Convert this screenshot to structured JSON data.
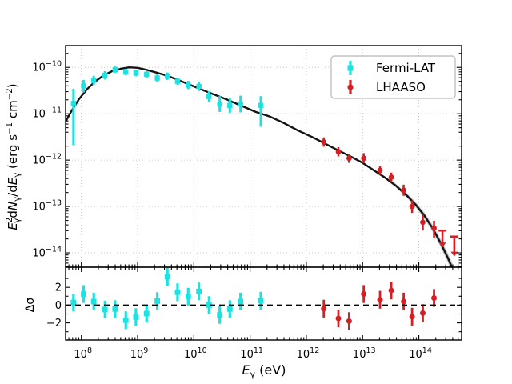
{
  "labels": {
    "residual_ylabel": "Δσ",
    "xlabel_parts": [
      {
        "t": "E",
        "i": 1
      },
      {
        "t": "γ",
        "v": -1
      },
      {
        "t": " (eV)"
      }
    ],
    "ylabel_parts": [
      {
        "t": "E",
        "i": 1
      },
      {
        "t": "2",
        "v": 1
      },
      {
        "t": "γ",
        "v": -1,
        "dx": -7
      },
      {
        "t": "d"
      },
      {
        "t": "N",
        "i": 1
      },
      {
        "t": "γ",
        "v": -1
      },
      {
        "t": "/d"
      },
      {
        "t": "E",
        "i": 1
      },
      {
        "t": "γ",
        "v": -1
      },
      {
        "t": " (erg s"
      },
      {
        "t": "−1",
        "v": 1
      },
      {
        "t": " cm"
      },
      {
        "t": "−2",
        "v": 1
      },
      {
        "t": ")"
      }
    ]
  },
  "chart_data": {
    "type": "scatter",
    "description": "Gamma-ray spectral energy distribution with best-fit model (top panel) and fit residuals in sigma (bottom panel)",
    "legend": {
      "position": "upper right",
      "entries": [
        {
          "label": "Fermi-LAT",
          "color": "#1de2e2",
          "marker": "square"
        },
        {
          "label": "LHAASO",
          "color": "#d42024",
          "marker": "circle"
        }
      ]
    },
    "colors": {
      "fermi": "#1de2e2",
      "lhaaso": "#d42024",
      "model_curve": "#141414",
      "model_band": "#9a9a9a",
      "grid": "#c8c8c8",
      "spine": "#000000",
      "zero_line": "#000000",
      "background": "#ffffff"
    },
    "axes": {
      "x": {
        "scale": "log",
        "lim_log10": [
          7.72,
          14.76
        ],
        "major_exponents": [
          8,
          9,
          10,
          11,
          12,
          13,
          14
        ],
        "grid": true
      },
      "y_main": {
        "scale": "log",
        "lim_log10": [
          -14.31,
          -9.53
        ],
        "major_exponents": [
          -10,
          -11,
          -12,
          -13,
          -14
        ],
        "grid": true
      },
      "y_residual": {
        "scale": "linear",
        "lim_sigma": [
          -3.93,
          4.27
        ],
        "major_ticks": [
          2,
          0,
          -2
        ],
        "minor_ticks": [
          3,
          1,
          -1,
          -3
        ],
        "zero_dashed_line": true,
        "grid": false
      }
    },
    "series": [
      {
        "name": "Fermi-LAT",
        "marker": "square",
        "log10_E_eV": [
          7.86,
          8.04,
          8.22,
          8.42,
          8.6,
          8.79,
          8.97,
          9.16,
          9.35,
          9.53,
          9.71,
          9.9,
          10.09,
          10.27,
          10.46,
          10.64,
          10.83,
          11.19
        ],
        "log10_flux": [
          -10.78,
          -10.4,
          -10.28,
          -10.17,
          -10.05,
          -10.1,
          -10.12,
          -10.15,
          -10.23,
          -10.19,
          -10.3,
          -10.38,
          -10.41,
          -10.63,
          -10.79,
          -10.82,
          -10.79,
          -10.82
        ],
        "err_up_dex": [
          0.32,
          0.13,
          0.1,
          0.09,
          0.07,
          0.07,
          0.07,
          0.07,
          0.08,
          0.08,
          0.08,
          0.09,
          0.1,
          0.12,
          0.17,
          0.16,
          0.18,
          0.2
        ],
        "err_down_dex": [
          0.9,
          0.14,
          0.1,
          0.09,
          0.07,
          0.07,
          0.07,
          0.07,
          0.08,
          0.08,
          0.08,
          0.09,
          0.1,
          0.12,
          0.17,
          0.16,
          0.18,
          0.46
        ],
        "residual_sigma": [
          0.3,
          1.25,
          0.4,
          -0.5,
          -0.45,
          -1.7,
          -1.35,
          -0.95,
          0.45,
          3.2,
          1.45,
          0.95,
          1.55,
          0.0,
          -1.1,
          -0.45,
          0.4,
          0.5
        ],
        "residual_sigma_err": 1.0
      },
      {
        "name": "LHAASO",
        "marker": "circle",
        "log10_E_eV": [
          12.31,
          12.57,
          12.76,
          13.02,
          13.31,
          13.51,
          13.73,
          13.88,
          14.07,
          14.27
        ],
        "log10_flux": [
          -11.61,
          -11.82,
          -11.96,
          -11.96,
          -12.22,
          -12.37,
          -12.65,
          -13.0,
          -13.34,
          -13.47
        ],
        "err_up_dex": [
          0.1,
          0.1,
          0.1,
          0.11,
          0.1,
          0.1,
          0.12,
          0.13,
          0.16,
          0.16
        ],
        "err_down_dex": [
          0.1,
          0.1,
          0.1,
          0.11,
          0.1,
          0.1,
          0.12,
          0.14,
          0.18,
          0.22
        ],
        "residual_sigma": [
          -0.4,
          -1.5,
          -1.8,
          1.25,
          0.6,
          1.65,
          0.4,
          -1.3,
          -0.9,
          0.8
        ],
        "residual_sigma_err": 1.0
      }
    ],
    "upper_limits": {
      "series": "LHAASO",
      "points": [
        {
          "log10_E_eV": 14.42,
          "log10_flux": -13.52,
          "arrow_tip_log10_flux": -13.88
        },
        {
          "log10_E_eV": 14.63,
          "log10_flux": -13.65,
          "arrow_tip_log10_flux": -14.08
        }
      ]
    },
    "model_curve": {
      "log10_E_eV": [
        7.72,
        7.82,
        7.95,
        8.1,
        8.25,
        8.4,
        8.55,
        8.7,
        8.85,
        9.0,
        9.15,
        9.3,
        9.5,
        9.7,
        9.9,
        10.1,
        10.35,
        10.6,
        10.85,
        11.1,
        11.35,
        11.6,
        11.85,
        12.1,
        12.31,
        12.55,
        12.8,
        13.0,
        13.2,
        13.4,
        13.6,
        13.8,
        13.95,
        14.1,
        14.25,
        14.4,
        14.52,
        14.62,
        14.68
      ],
      "log10_flux": [
        -11.17,
        -10.95,
        -10.7,
        -10.47,
        -10.3,
        -10.17,
        -10.08,
        -10.03,
        -10.0,
        -10.01,
        -10.05,
        -10.1,
        -10.17,
        -10.26,
        -10.36,
        -10.46,
        -10.58,
        -10.7,
        -10.83,
        -10.96,
        -11.06,
        -11.2,
        -11.36,
        -11.5,
        -11.63,
        -11.78,
        -11.93,
        -12.06,
        -12.22,
        -12.38,
        -12.56,
        -12.78,
        -12.97,
        -13.2,
        -13.48,
        -13.82,
        -14.12,
        -14.4,
        -14.55
      ],
      "uncertainty_band": {
        "start_log10_E": 12.55,
        "max_halfwidth_dex": 0.105
      }
    }
  }
}
